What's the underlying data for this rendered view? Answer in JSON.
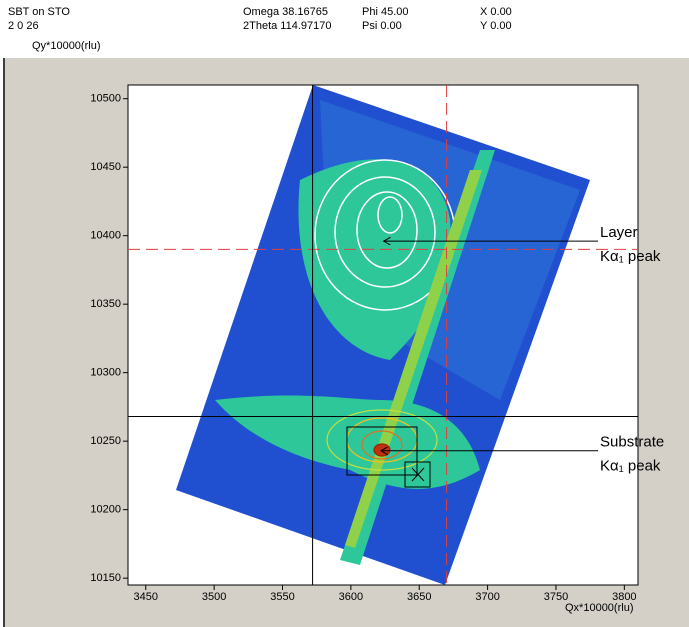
{
  "header": {
    "sample": "SBT on STO",
    "reflection": "2 0 26",
    "omega": "Omega 38.16765",
    "two_theta": "2Theta 114.97170",
    "phi": "Phi 45.00",
    "psi": "Psi 0.00",
    "x": "X 0.00",
    "y": "Y 0.00"
  },
  "chart_data": {
    "type": "contour",
    "x_label": "Qx*10000(rlu)",
    "y_label": "Qy*10000(rlu)",
    "xlim": [
      3437,
      3810
    ],
    "ylim": [
      10145,
      10510
    ],
    "xticks": [
      3450,
      3500,
      3550,
      3600,
      3650,
      3700,
      3750,
      3800
    ],
    "yticks": [
      10150,
      10200,
      10250,
      10300,
      10350,
      10400,
      10450,
      10500
    ],
    "crosshairs": [
      {
        "x": 3670,
        "y": 10390,
        "color": "#e04040",
        "dashed": true
      },
      {
        "x": 3572,
        "y": 10268,
        "color": "#000000",
        "dashed": false
      }
    ],
    "annotations": [
      {
        "lines": [
          "Layer",
          "Kα₁ peak"
        ],
        "x": 3624,
        "y": 10396
      },
      {
        "lines": [
          "Substrate",
          "Kα₁ peak"
        ],
        "x": 3622,
        "y": 10243
      }
    ]
  }
}
